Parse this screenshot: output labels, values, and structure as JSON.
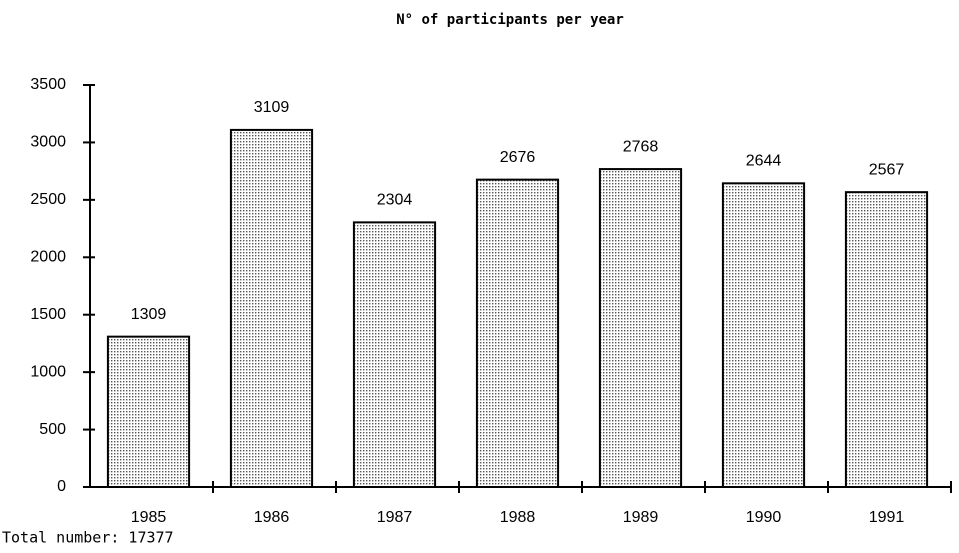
{
  "chart_data": {
    "type": "bar",
    "title": "N° of participants per year",
    "categories": [
      "1985",
      "1986",
      "1987",
      "1988",
      "1989",
      "1990",
      "1991"
    ],
    "values": [
      1309,
      3109,
      2304,
      2676,
      2768,
      2644,
      2567
    ],
    "color": "#555555",
    "ylim": [
      0,
      3500
    ],
    "yticks": [
      0,
      500,
      1000,
      1500,
      2000,
      2500,
      3000,
      3500
    ],
    "grid": false,
    "footnote": "Total number: 17377"
  }
}
